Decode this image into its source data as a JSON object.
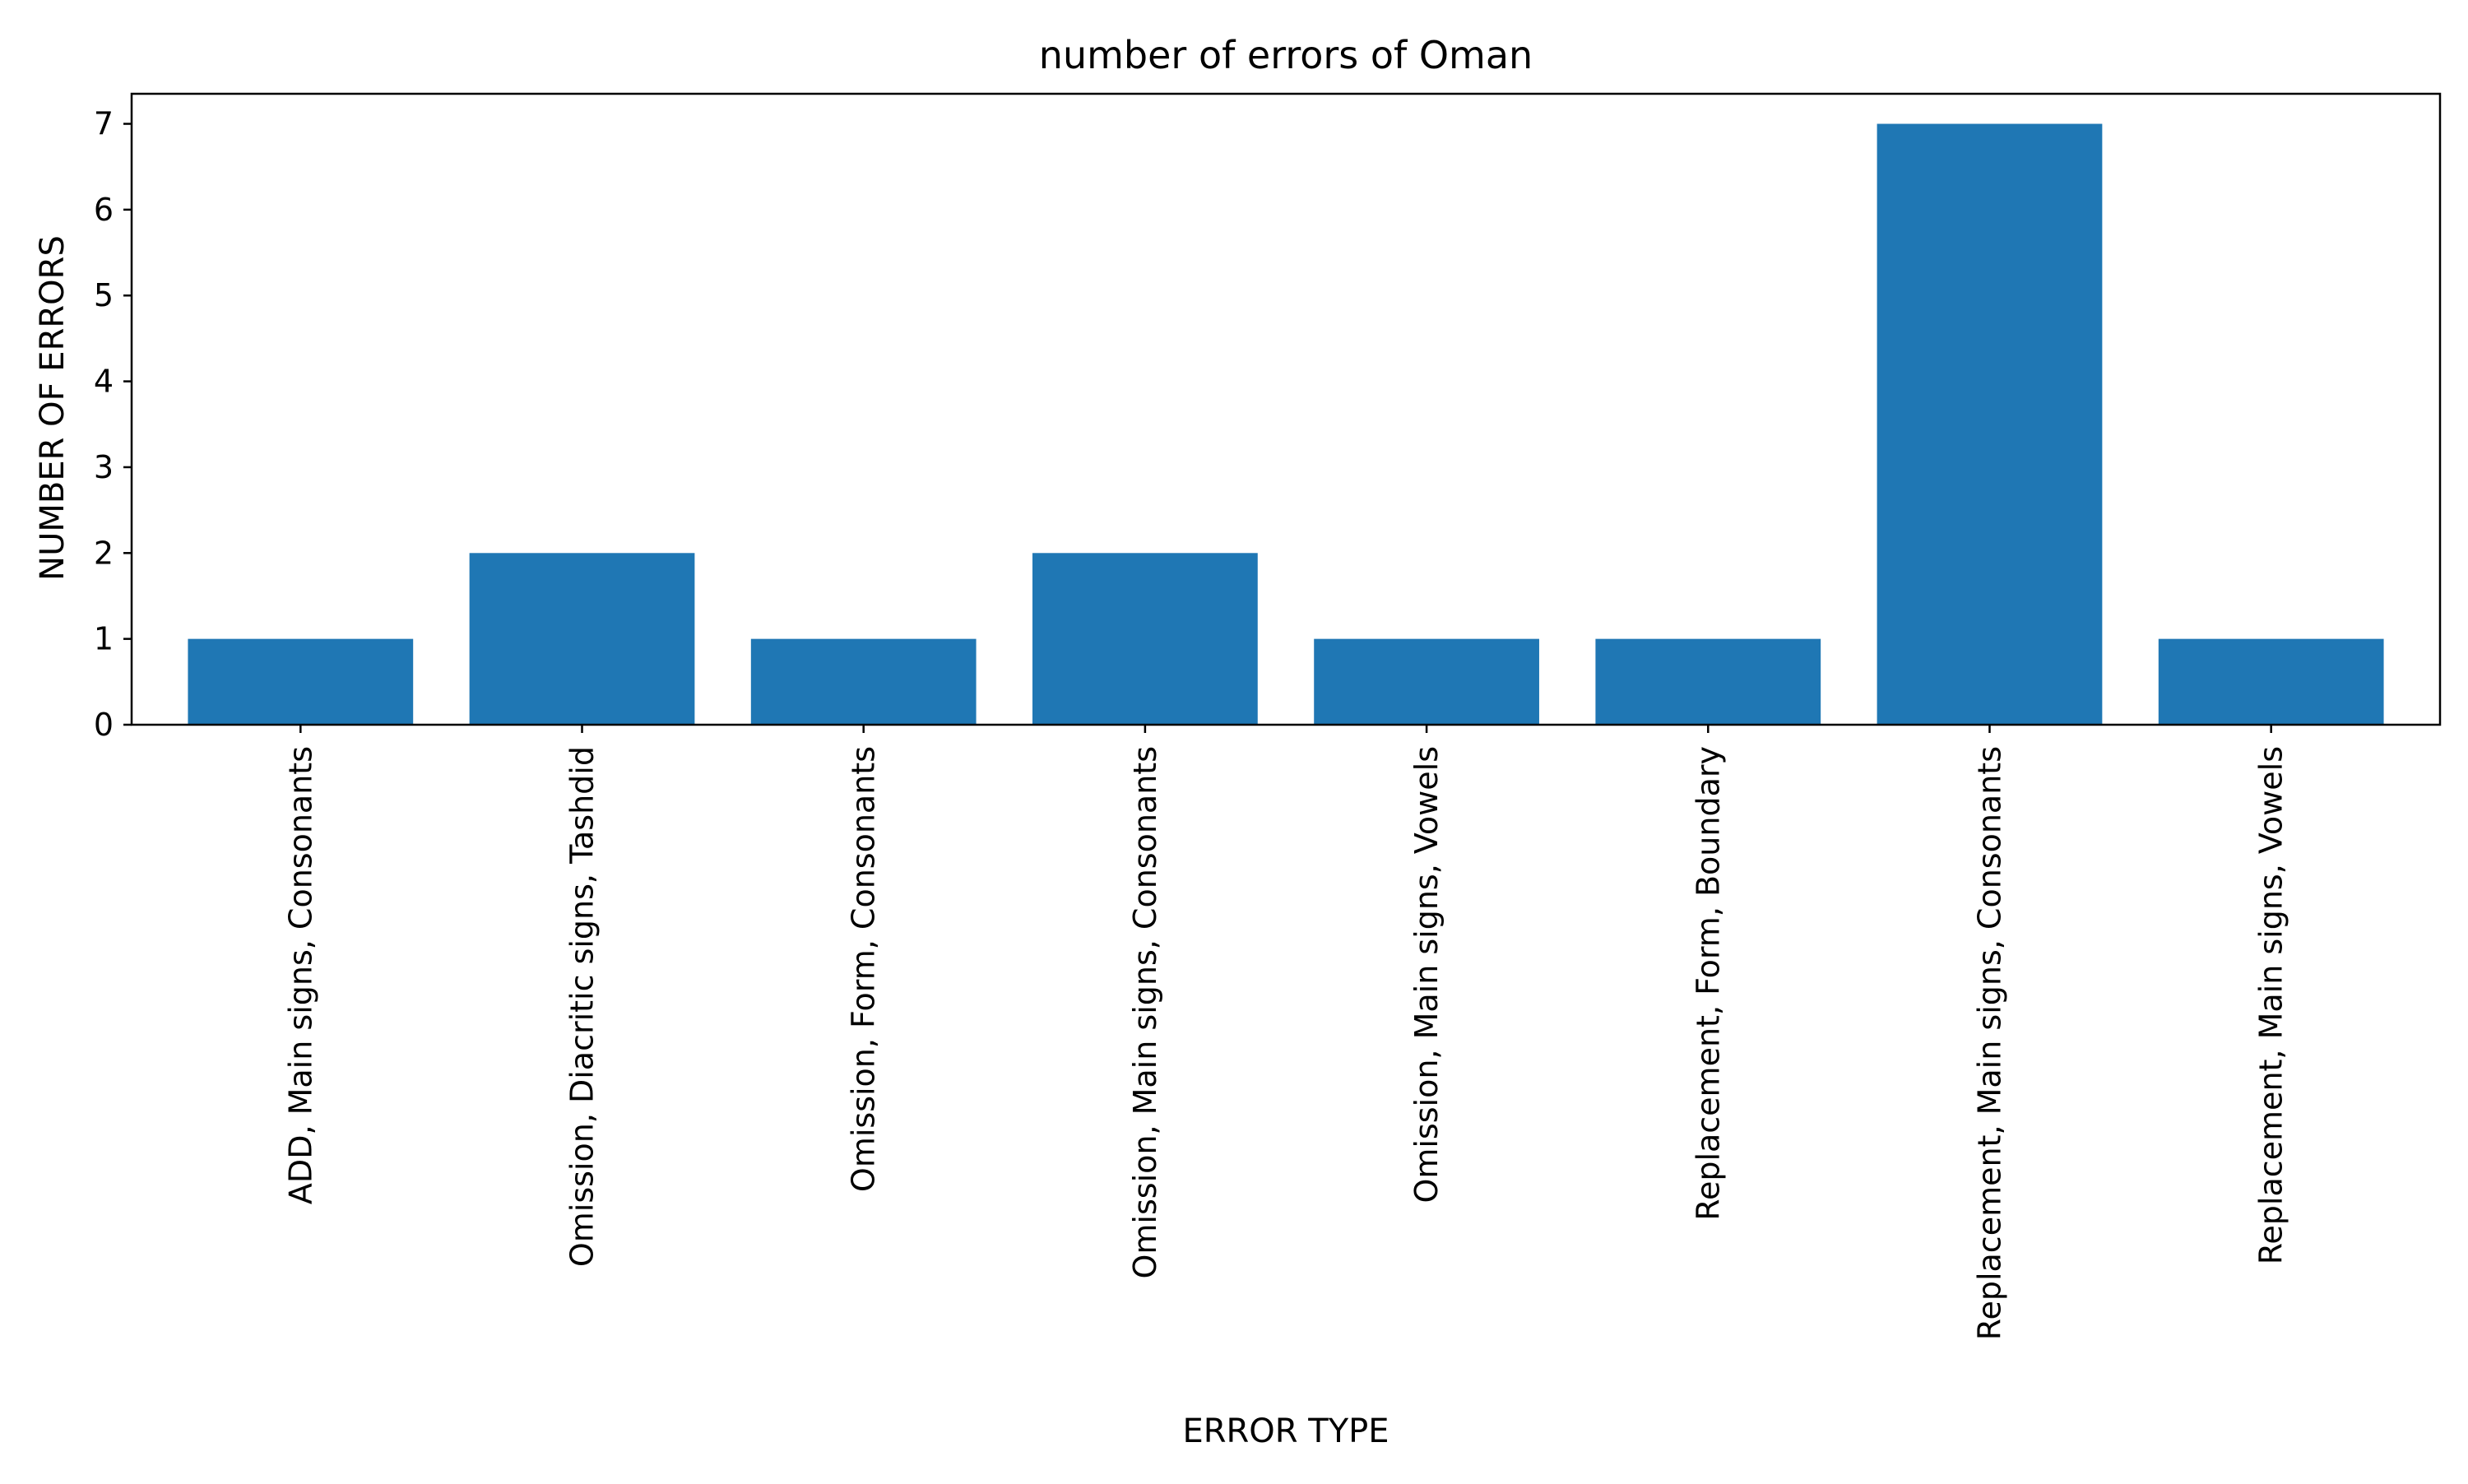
{
  "chart_data": {
    "type": "bar",
    "title": "number of errors of Oman",
    "xlabel": "ERROR TYPE",
    "ylabel": "NUMBER OF ERRORS",
    "categories": [
      "ADD, Main signs, Consonants",
      "Omission, Diacritic signs, Tashdid",
      "Omission, Form, Consonants",
      "Omission, Main signs, Consonants",
      "Omission, Main signs, Vowels",
      "Replacement, Form, Boundary",
      "Replacement, Main signs, Consonants",
      "Replacement, Main signs, Vowels"
    ],
    "values": [
      1,
      2,
      1,
      2,
      1,
      1,
      7,
      1
    ],
    "ylim": [
      0,
      7.35
    ],
    "yticks": [
      0,
      1,
      2,
      3,
      4,
      5,
      6,
      7
    ],
    "bar_color": "#1f77b4",
    "grid": false,
    "legend": "none"
  }
}
